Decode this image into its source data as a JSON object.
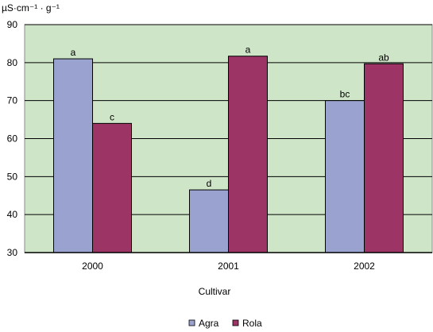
{
  "chart_data": {
    "type": "bar",
    "title": "",
    "ylabel": "µS·cm⁻¹ · g⁻¹",
    "xlabel": "Cultivar",
    "categories": [
      "2000",
      "2001",
      "2002"
    ],
    "series": [
      {
        "name": "Agra",
        "values": [
          81,
          46.5,
          70
        ],
        "labels": [
          "a",
          "d",
          "bc"
        ]
      },
      {
        "name": "Rola",
        "values": [
          64,
          81.7,
          79.7
        ],
        "labels": [
          "c",
          "a",
          "ab"
        ]
      }
    ],
    "ylim": [
      30,
      90
    ],
    "yticks": [
      30,
      40,
      50,
      60,
      70,
      80,
      90
    ],
    "grid": true,
    "legend_position": "bottom",
    "colors": {
      "Agra": "#9aa3cf",
      "Rola": "#9c3466",
      "plot_background": "#cfe5c8",
      "gridline": "#000000"
    }
  }
}
